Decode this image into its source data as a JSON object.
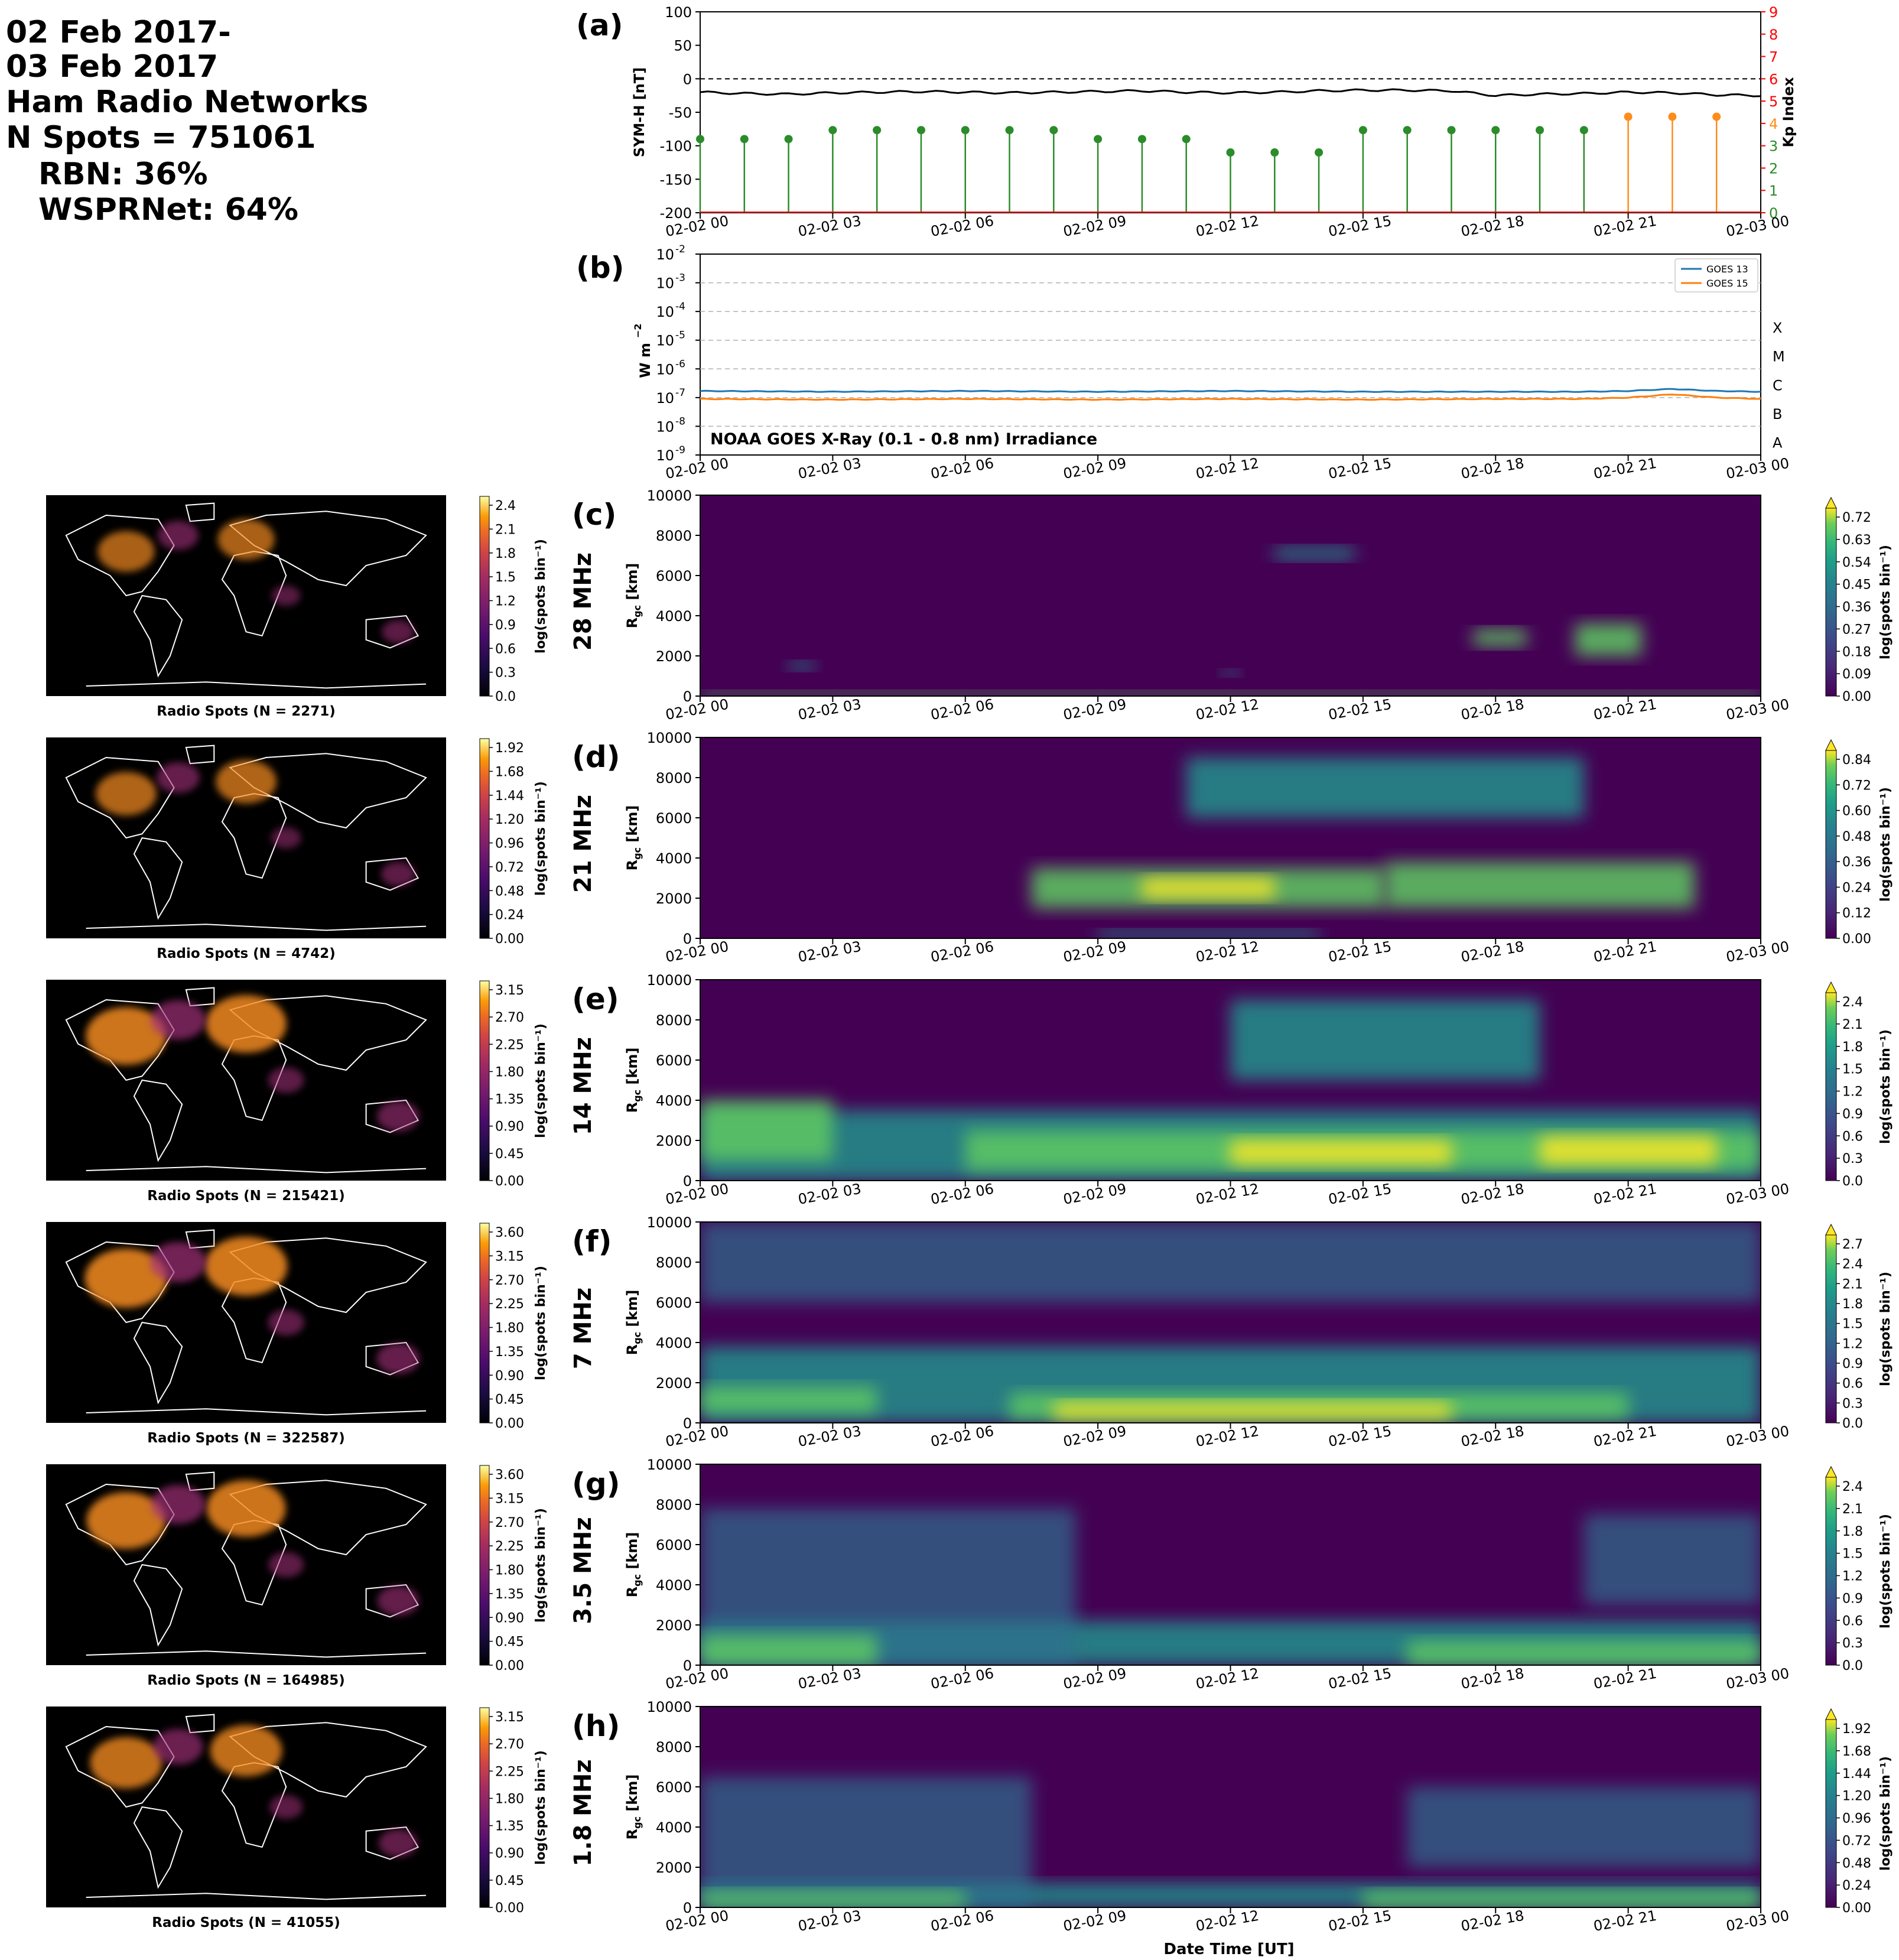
{
  "title_block": {
    "lines": [
      "02 Feb 2017-",
      "03 Feb 2017",
      "Ham Radio Networks",
      "N Spots = 751061",
      "RBN: 36%",
      "WSPRNet: 64%"
    ]
  },
  "x_ticks": [
    "02-02 00",
    "02-02 03",
    "02-02 06",
    "02-02 09",
    "02-02 12",
    "02-02 15",
    "02-02 18",
    "02-02 21",
    "02-03 00"
  ],
  "x_label": "Date Time [UT]",
  "range_label": "R_gc [km]",
  "range_ticks": [
    "0",
    "2000",
    "4000",
    "6000",
    "8000",
    "10000"
  ],
  "cbar_label": "log(spots bin",
  "map_title_prefix": "Radio Spots (N = ",
  "map_title_suffix": ")",
  "colors": {
    "symh": "#000000",
    "kp_low": "#2a8c2a",
    "kp_high": "#ff8c1a",
    "kp_axis": "#ff0000",
    "goes13": "#1f77b4",
    "goes15": "#ff7f0e",
    "viridis_dark": "#440154",
    "viridis_mid": "#21918c",
    "viridis_bright": "#fde725",
    "map_bg": "#000000",
    "coast": "#ffffff"
  },
  "chart_data": [
    {
      "panel": "(a)",
      "type": "line",
      "ylabel": "SYM-H [nT]",
      "ylim": [
        -200,
        100
      ],
      "yticks": [
        "100",
        "50",
        "0",
        "-50",
        "-100",
        "-150",
        "-200"
      ],
      "y2label": "Kp Index",
      "y2lim": [
        0,
        9
      ],
      "y2ticks": [
        "0",
        "1",
        "2",
        "3",
        "4",
        "5",
        "6",
        "7",
        "8",
        "9"
      ],
      "symh_hours": [
        0,
        1,
        2,
        3,
        4,
        5,
        6,
        7,
        8,
        9,
        10,
        11,
        12,
        13,
        14,
        15,
        16,
        17,
        18,
        19,
        20,
        21,
        22,
        23,
        24
      ],
      "symh_values": [
        -20,
        -22,
        -23,
        -21,
        -20,
        -19,
        -20,
        -21,
        -20,
        -19,
        -18,
        -20,
        -21,
        -20,
        -18,
        -17,
        -17,
        -18,
        -25,
        -23,
        -22,
        -20,
        -21,
        -24,
        -25
      ],
      "kp_hours": [
        0,
        1,
        2,
        3,
        4,
        5,
        6,
        7,
        8,
        9,
        10,
        11,
        12,
        13,
        14,
        15,
        16,
        17,
        18,
        19,
        20,
        21,
        22,
        23
      ],
      "kp_values": [
        3.3,
        3.3,
        3.3,
        3.7,
        3.7,
        3.7,
        3.7,
        3.7,
        3.7,
        3.3,
        3.3,
        3.3,
        2.7,
        2.7,
        2.7,
        3.7,
        3.7,
        3.7,
        3.7,
        3.7,
        3.7,
        4.3,
        4.3,
        4.3
      ]
    },
    {
      "panel": "(b)",
      "type": "line",
      "ylabel": "W m",
      "scale": "log",
      "ylim": [
        1e-09,
        0.01
      ],
      "yticks": [
        "10-9",
        "10-8",
        "10-7",
        "10-6",
        "10-5",
        "10-4",
        "10-3",
        "10-2"
      ],
      "flare_classes": [
        "A",
        "B",
        "C",
        "M",
        "X"
      ],
      "annotation": "NOAA GOES X-Ray (0.1 - 0.8 nm) Irradiance",
      "series": [
        {
          "name": "GOES 13",
          "hours": [
            0,
            3,
            6,
            9,
            12,
            15,
            18,
            20,
            21,
            22,
            23,
            24
          ],
          "values": [
            1.7e-07,
            1.6e-07,
            1.7e-07,
            1.6e-07,
            1.7e-07,
            1.6e-07,
            1.6e-07,
            1.6e-07,
            1.7e-07,
            2e-07,
            1.7e-07,
            1.6e-07
          ]
        },
        {
          "name": "GOES 15",
          "hours": [
            0,
            3,
            6,
            9,
            12,
            15,
            18,
            20,
            21,
            22,
            23,
            24
          ],
          "values": [
            9e-08,
            8.5e-08,
            9e-08,
            8.5e-08,
            9e-08,
            8.5e-08,
            9e-08,
            9e-08,
            1e-07,
            1.3e-07,
            1e-07,
            9e-08
          ]
        }
      ]
    }
  ],
  "bands": [
    {
      "panel": "(c)",
      "freq": "28 MHz",
      "n": "2271",
      "map_ticks": [
        "0.0",
        "0.3",
        "0.6",
        "0.9",
        "1.2",
        "1.5",
        "1.8",
        "2.1",
        "2.4"
      ],
      "cbar_ticks": [
        "0.00",
        "0.09",
        "0.18",
        "0.27",
        "0.36",
        "0.45",
        "0.54",
        "0.63",
        "0.72"
      ],
      "blobs": [
        [
          13,
          14.8,
          6800,
          7400,
          "mid"
        ],
        [
          17.5,
          18.7,
          2500,
          3300,
          "hi"
        ],
        [
          19.8,
          21.3,
          2000,
          3600,
          "hi"
        ],
        [
          2,
          2.6,
          1300,
          1700,
          "mid"
        ],
        [
          11.8,
          12.2,
          1000,
          1300,
          "mid"
        ],
        [
          0,
          24,
          0,
          250,
          "hi"
        ]
      ]
    },
    {
      "panel": "(d)",
      "freq": "21 MHz",
      "n": "4742",
      "map_ticks": [
        "0.00",
        "0.24",
        "0.48",
        "0.72",
        "0.96",
        "1.20",
        "1.44",
        "1.68",
        "1.92"
      ],
      "cbar_ticks": [
        "0.00",
        "0.12",
        "0.24",
        "0.36",
        "0.48",
        "0.60",
        "0.72",
        "0.84"
      ],
      "blobs": [
        [
          7.5,
          15.5,
          1500,
          3500,
          "hi"
        ],
        [
          10,
          13,
          2000,
          3000,
          "top"
        ],
        [
          15.5,
          22.5,
          1500,
          3800,
          "hi"
        ],
        [
          11,
          20,
          6000,
          9000,
          "mid"
        ],
        [
          9,
          14,
          0,
          400,
          "mid"
        ]
      ]
    },
    {
      "panel": "(e)",
      "freq": "14 MHz",
      "n": "215421",
      "map_ticks": [
        "0.00",
        "0.45",
        "0.90",
        "1.35",
        "1.80",
        "2.25",
        "2.70",
        "3.15"
      ],
      "cbar_ticks": [
        "0.0",
        "0.3",
        "0.6",
        "0.9",
        "1.2",
        "1.5",
        "1.8",
        "2.1",
        "2.4"
      ],
      "blobs": [
        [
          0,
          24,
          0,
          3500,
          "mid"
        ],
        [
          6,
          24,
          500,
          2500,
          "hi"
        ],
        [
          12,
          17,
          800,
          2000,
          "top"
        ],
        [
          19,
          23,
          800,
          2200,
          "top"
        ],
        [
          12,
          19,
          5000,
          9000,
          "mid"
        ],
        [
          0,
          3,
          1000,
          4000,
          "hi"
        ]
      ]
    },
    {
      "panel": "(f)",
      "freq": "7 MHz",
      "n": "322587",
      "map_ticks": [
        "0.00",
        "0.45",
        "0.90",
        "1.35",
        "1.80",
        "2.25",
        "2.70",
        "3.15",
        "3.60"
      ],
      "cbar_ticks": [
        "0.0",
        "0.3",
        "0.6",
        "0.9",
        "1.2",
        "1.5",
        "1.8",
        "2.1",
        "2.4",
        "2.7"
      ],
      "blobs": [
        [
          0,
          24,
          0,
          3800,
          "mid"
        ],
        [
          0,
          24,
          6000,
          10000,
          "low"
        ],
        [
          7,
          21,
          200,
          1500,
          "hi"
        ],
        [
          8,
          17,
          200,
          1000,
          "top"
        ],
        [
          0,
          4,
          500,
          1800,
          "hi"
        ]
      ]
    },
    {
      "panel": "(g)",
      "freq": "3.5 MHz",
      "n": "164985",
      "map_ticks": [
        "0.00",
        "0.45",
        "0.90",
        "1.35",
        "1.80",
        "2.25",
        "2.70",
        "3.15",
        "3.60"
      ],
      "cbar_ticks": [
        "0.0",
        "0.3",
        "0.6",
        "0.9",
        "1.2",
        "1.5",
        "1.8",
        "2.1",
        "2.4"
      ],
      "blobs": [
        [
          0,
          24,
          0,
          2200,
          "mid"
        ],
        [
          0,
          8.5,
          0,
          7800,
          "low"
        ],
        [
          0,
          4,
          0,
          1500,
          "hi"
        ],
        [
          16,
          24,
          0,
          1200,
          "hi"
        ],
        [
          20,
          24,
          3000,
          7500,
          "low"
        ]
      ]
    },
    {
      "panel": "(h)",
      "freq": "1.8 MHz",
      "n": "41055",
      "map_ticks": [
        "0.00",
        "0.45",
        "0.90",
        "1.35",
        "1.80",
        "2.25",
        "2.70",
        "3.15"
      ],
      "cbar_ticks": [
        "0.00",
        "0.24",
        "0.48",
        "0.72",
        "0.96",
        "1.20",
        "1.44",
        "1.68",
        "1.92"
      ],
      "blobs": [
        [
          0,
          24,
          0,
          1200,
          "mid"
        ],
        [
          0,
          7.5,
          0,
          6500,
          "low"
        ],
        [
          0,
          6,
          0,
          800,
          "hi"
        ],
        [
          15,
          24,
          0,
          800,
          "hi"
        ],
        [
          16,
          24,
          2000,
          6000,
          "low"
        ]
      ]
    }
  ]
}
